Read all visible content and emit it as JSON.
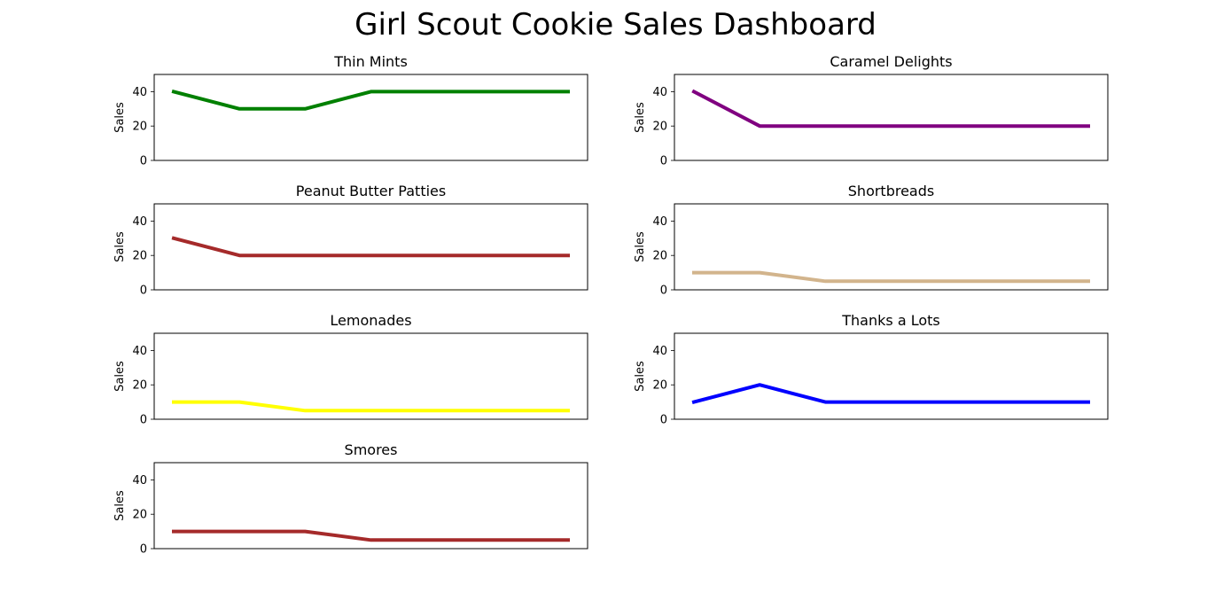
{
  "title": "Girl Scout Cookie Sales Dashboard",
  "chart_data": [
    {
      "type": "line",
      "title": "Thin Mints",
      "ylabel": "Sales",
      "xlabel": "",
      "x": [
        0,
        1,
        2,
        3,
        4,
        5,
        6
      ],
      "values": [
        40,
        30,
        30,
        40,
        40,
        40,
        40
      ],
      "ylim": [
        0,
        50
      ],
      "yticks": [
        0,
        20,
        40
      ],
      "color": "#008000",
      "grid": false
    },
    {
      "type": "line",
      "title": "Caramel Delights",
      "ylabel": "Sales",
      "xlabel": "",
      "x": [
        0,
        1,
        2,
        3,
        4,
        5,
        6
      ],
      "values": [
        40,
        20,
        20,
        20,
        20,
        20,
        20
      ],
      "ylim": [
        0,
        50
      ],
      "yticks": [
        0,
        20,
        40
      ],
      "color": "#800080",
      "grid": false
    },
    {
      "type": "line",
      "title": "Peanut Butter Patties",
      "ylabel": "Sales",
      "xlabel": "",
      "x": [
        0,
        1,
        2,
        3,
        4,
        5,
        6
      ],
      "values": [
        30,
        20,
        20,
        20,
        20,
        20,
        20
      ],
      "ylim": [
        0,
        50
      ],
      "yticks": [
        0,
        20,
        40
      ],
      "color": "#a52a2a",
      "grid": false
    },
    {
      "type": "line",
      "title": "Shortbreads",
      "ylabel": "Sales",
      "xlabel": "",
      "x": [
        0,
        1,
        2,
        3,
        4,
        5,
        6
      ],
      "values": [
        10,
        10,
        5,
        5,
        5,
        5,
        5
      ],
      "ylim": [
        0,
        50
      ],
      "yticks": [
        0,
        20,
        40
      ],
      "color": "#d2b48c",
      "grid": false
    },
    {
      "type": "line",
      "title": "Lemonades",
      "ylabel": "Sales",
      "xlabel": "",
      "x": [
        0,
        1,
        2,
        3,
        4,
        5,
        6
      ],
      "values": [
        10,
        10,
        5,
        5,
        5,
        5,
        5
      ],
      "ylim": [
        0,
        50
      ],
      "yticks": [
        0,
        20,
        40
      ],
      "color": "#ffff00",
      "grid": false
    },
    {
      "type": "line",
      "title": "Thanks a Lots",
      "ylabel": "Sales",
      "xlabel": "",
      "x": [
        0,
        1,
        2,
        3,
        4,
        5,
        6
      ],
      "values": [
        10,
        20,
        10,
        10,
        10,
        10,
        10
      ],
      "ylim": [
        0,
        50
      ],
      "yticks": [
        0,
        20,
        40
      ],
      "color": "#0000ff",
      "grid": false
    },
    {
      "type": "line",
      "title": "Smores",
      "ylabel": "Sales",
      "xlabel": "",
      "x": [
        0,
        1,
        2,
        3,
        4,
        5,
        6
      ],
      "values": [
        10,
        10,
        10,
        5,
        5,
        5,
        5
      ],
      "ylim": [
        0,
        50
      ],
      "yticks": [
        0,
        20,
        40
      ],
      "color": "#a52a2a",
      "grid": false
    }
  ]
}
